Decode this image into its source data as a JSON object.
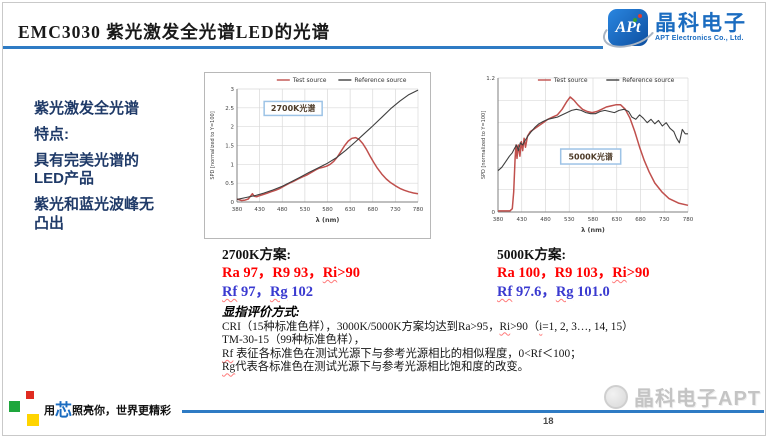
{
  "header": {
    "title": "EMC3030 紫光激发全光谱LED的光谱",
    "logo": {
      "icon_text": "APt",
      "company_cn": "晶科电子",
      "company_en": "APT Electronics Co., Ltd."
    }
  },
  "sidebar": {
    "lines": [
      "紫光激发全光谱",
      "特点:",
      "具有完美光谱的LED产品",
      "紫光和蓝光波峰无凸出"
    ]
  },
  "results": {
    "k2700": {
      "heading": "2700K方案:",
      "cri": [
        {
          "t": "Ra 97，R9 93，"
        },
        {
          "t": "Ri",
          "wavy": true
        },
        {
          "t": ">90"
        }
      ],
      "tm30": [
        {
          "t": "Rf",
          "wavy": true
        },
        {
          "t": " 97，"
        },
        {
          "t": "Rg",
          "wavy": true
        },
        {
          "t": " 102"
        }
      ]
    },
    "k5000": {
      "heading": "5000K方案:",
      "cri": [
        {
          "t": "Ra 100，R9 103，"
        },
        {
          "t": "Ri",
          "wavy": true
        },
        {
          "t": ">90"
        }
      ],
      "tm30": [
        {
          "t": "Rf",
          "wavy": true
        },
        {
          "t": " 97.6，"
        },
        {
          "t": "Rg",
          "wavy": true
        },
        {
          "t": " 101.0"
        }
      ]
    }
  },
  "evaluation": {
    "heading": "显指评价方式:",
    "lines": [
      [
        {
          "t": "CRI（15种标准色样），3000K/5000K方案均达到Ra>95，"
        },
        {
          "t": "Ri",
          "wavy": true
        },
        {
          "t": ">90（"
        },
        {
          "t": "i",
          "wavy": true
        },
        {
          "t": "=1, 2, 3…, 14, 15）"
        }
      ],
      [
        {
          "t": "TM-30-15（99种标准色样），"
        }
      ],
      [
        {
          "t": "Rf",
          "wavy": true
        },
        {
          "t": " 表征各标准色在测试光源下与参考光源相比的相似程度，0<Rf＜100；"
        }
      ],
      [
        {
          "t": "Rg",
          "wavy": true
        },
        {
          "t": "代表各标准色在测试光源下与参考光源相比饱和度的改变。"
        }
      ]
    ]
  },
  "footer": {
    "slogan": {
      "part1": "用",
      "part2": "芯",
      "part3": "照亮你，世界更精彩"
    },
    "watermark": "晶科电子APT",
    "page_number": "18"
  },
  "colors": {
    "accent_blue": "#2e7bc4",
    "brand_blue": "#1b6cc0",
    "sidebar_navy": "#1f3a68",
    "value_red": "#ff0000",
    "value_blue": "#3a3ad0",
    "test_source_red": "#c0504d",
    "reference_source_black": "#3f3f3f",
    "annotation_border_blue": "#9dc3e6"
  },
  "chart_data": [
    {
      "type": "line",
      "xlabel": "λ (nm)",
      "ylabel": "SPD [normalized to Y=100]",
      "xlim": [
        380,
        780
      ],
      "ylim": [
        0,
        3
      ],
      "x_ticks": [
        380,
        430,
        480,
        530,
        580,
        630,
        680,
        730,
        780
      ],
      "y_ticks": [
        0,
        0.5,
        1,
        1.5,
        2,
        2.5,
        3
      ],
      "y_tick_labels": [
        "0",
        "0.5",
        "1",
        "1.5",
        "2",
        "2.5",
        "3"
      ],
      "grid": true,
      "legend_position": "top",
      "annotation": {
        "text": "2700K光谱",
        "fx": 0.15,
        "fy": 0.11,
        "w": 58,
        "h": 14
      },
      "series": [
        {
          "name": "Test source",
          "color": "#c0504d",
          "points": [
            [
              380,
              0.08
            ],
            [
              390,
              0.04
            ],
            [
              398,
              0.05
            ],
            [
              405,
              0.08
            ],
            [
              410,
              0.16
            ],
            [
              414,
              0.22
            ],
            [
              418,
              0.15
            ],
            [
              424,
              0.14
            ],
            [
              430,
              0.17
            ],
            [
              438,
              0.2
            ],
            [
              446,
              0.23
            ],
            [
              455,
              0.27
            ],
            [
              465,
              0.31
            ],
            [
              475,
              0.36
            ],
            [
              485,
              0.43
            ],
            [
              495,
              0.49
            ],
            [
              505,
              0.55
            ],
            [
              515,
              0.61
            ],
            [
              525,
              0.67
            ],
            [
              535,
              0.72
            ],
            [
              545,
              0.79
            ],
            [
              555,
              0.86
            ],
            [
              562,
              0.9
            ],
            [
              570,
              0.92
            ],
            [
              578,
              0.95
            ],
            [
              586,
              1.0
            ],
            [
              594,
              1.08
            ],
            [
              602,
              1.2
            ],
            [
              610,
              1.35
            ],
            [
              618,
              1.5
            ],
            [
              626,
              1.62
            ],
            [
              634,
              1.69
            ],
            [
              642,
              1.71
            ],
            [
              650,
              1.66
            ],
            [
              658,
              1.55
            ],
            [
              666,
              1.4
            ],
            [
              674,
              1.22
            ],
            [
              682,
              1.05
            ],
            [
              690,
              0.9
            ],
            [
              700,
              0.74
            ],
            [
              710,
              0.61
            ],
            [
              720,
              0.51
            ],
            [
              730,
              0.43
            ],
            [
              740,
              0.36
            ],
            [
              750,
              0.31
            ],
            [
              760,
              0.27
            ],
            [
              770,
              0.24
            ],
            [
              780,
              0.22
            ]
          ]
        },
        {
          "name": "Reference source",
          "color": "#3f3f3f",
          "points": [
            [
              380,
              0.07
            ],
            [
              400,
              0.12
            ],
            [
              420,
              0.17
            ],
            [
              440,
              0.24
            ],
            [
              460,
              0.32
            ],
            [
              480,
              0.42
            ],
            [
              500,
              0.54
            ],
            [
              520,
              0.66
            ],
            [
              540,
              0.79
            ],
            [
              560,
              0.91
            ],
            [
              580,
              1.03
            ],
            [
              600,
              1.18
            ],
            [
              620,
              1.37
            ],
            [
              640,
              1.58
            ],
            [
              660,
              1.8
            ],
            [
              680,
              2.02
            ],
            [
              700,
              2.25
            ],
            [
              720,
              2.48
            ],
            [
              740,
              2.68
            ],
            [
              760,
              2.85
            ],
            [
              780,
              2.97
            ]
          ]
        }
      ]
    },
    {
      "type": "line",
      "xlabel": "λ (nm)",
      "ylabel": "SPD [normalized to Y=100]",
      "xlim": [
        380,
        780
      ],
      "ylim": [
        0,
        1.2
      ],
      "x_ticks": [
        380,
        430,
        480,
        530,
        580,
        630,
        680,
        730,
        780
      ],
      "y_ticks": [
        0,
        0.2,
        0.4,
        0.6,
        0.8,
        1,
        1.2
      ],
      "y_tick_labels": [
        "0",
        "",
        "",
        "",
        "",
        "",
        "1.2"
      ],
      "grid": true,
      "legend_position": "top",
      "annotation": {
        "text": "5000K光谱",
        "fx": 0.33,
        "fy": 0.53,
        "w": 60,
        "h": 15
      },
      "series": [
        {
          "name": "Test source",
          "color": "#c0504d",
          "points": [
            [
              380,
              0.01
            ],
            [
              405,
              0.01
            ],
            [
              410,
              0.03
            ],
            [
              413,
              0.18
            ],
            [
              416,
              0.48
            ],
            [
              418,
              0.6
            ],
            [
              420,
              0.48
            ],
            [
              423,
              0.6
            ],
            [
              426,
              0.5
            ],
            [
              429,
              0.63
            ],
            [
              432,
              0.55
            ],
            [
              435,
              0.66
            ],
            [
              438,
              0.58
            ],
            [
              442,
              0.68
            ],
            [
              448,
              0.72
            ],
            [
              455,
              0.74
            ],
            [
              465,
              0.77
            ],
            [
              475,
              0.8
            ],
            [
              485,
              0.83
            ],
            [
              495,
              0.85
            ],
            [
              505,
              0.87
            ],
            [
              515,
              0.92
            ],
            [
              525,
              0.99
            ],
            [
              532,
              1.03
            ],
            [
              540,
              1.0
            ],
            [
              548,
              0.96
            ],
            [
              558,
              0.92
            ],
            [
              568,
              0.9
            ],
            [
              578,
              0.89
            ],
            [
              588,
              0.9
            ],
            [
              598,
              0.92
            ],
            [
              608,
              0.94
            ],
            [
              618,
              0.95
            ],
            [
              628,
              0.96
            ],
            [
              638,
              0.96
            ],
            [
              648,
              0.92
            ],
            [
              658,
              0.84
            ],
            [
              668,
              0.72
            ],
            [
              678,
              0.58
            ],
            [
              688,
              0.46
            ],
            [
              698,
              0.36
            ],
            [
              710,
              0.26
            ],
            [
              725,
              0.18
            ],
            [
              740,
              0.12
            ],
            [
              760,
              0.08
            ],
            [
              780,
              0.06
            ]
          ]
        },
        {
          "name": "Reference source",
          "color": "#3f3f3f",
          "points": [
            [
              380,
              0.37
            ],
            [
              388,
              0.4
            ],
            [
              396,
              0.45
            ],
            [
              404,
              0.5
            ],
            [
              410,
              0.53
            ],
            [
              415,
              0.57
            ],
            [
              419,
              0.6
            ],
            [
              423,
              0.55
            ],
            [
              427,
              0.62
            ],
            [
              432,
              0.6
            ],
            [
              437,
              0.64
            ],
            [
              443,
              0.68
            ],
            [
              450,
              0.72
            ],
            [
              458,
              0.76
            ],
            [
              466,
              0.79
            ],
            [
              475,
              0.81
            ],
            [
              485,
              0.83
            ],
            [
              495,
              0.84
            ],
            [
              505,
              0.85
            ],
            [
              515,
              0.87
            ],
            [
              525,
              0.89
            ],
            [
              535,
              0.91
            ],
            [
              545,
              0.92
            ],
            [
              555,
              0.91
            ],
            [
              565,
              0.89
            ],
            [
              575,
              0.88
            ],
            [
              585,
              0.88
            ],
            [
              595,
              0.9
            ],
            [
              605,
              0.91
            ],
            [
              615,
              0.9
            ],
            [
              625,
              0.89
            ],
            [
              635,
              0.91
            ],
            [
              645,
              0.92
            ],
            [
              655,
              0.9
            ],
            [
              662,
              0.85
            ],
            [
              670,
              0.83
            ],
            [
              678,
              0.87
            ],
            [
              686,
              0.84
            ],
            [
              694,
              0.8
            ],
            [
              702,
              0.83
            ],
            [
              710,
              0.79
            ],
            [
              718,
              0.82
            ],
            [
              726,
              0.77
            ],
            [
              734,
              0.8
            ],
            [
              742,
              0.75
            ],
            [
              750,
              0.72
            ],
            [
              756,
              0.66
            ],
            [
              762,
              0.62
            ],
            [
              768,
              0.74
            ],
            [
              774,
              0.7
            ],
            [
              780,
              0.7
            ]
          ]
        }
      ]
    }
  ]
}
